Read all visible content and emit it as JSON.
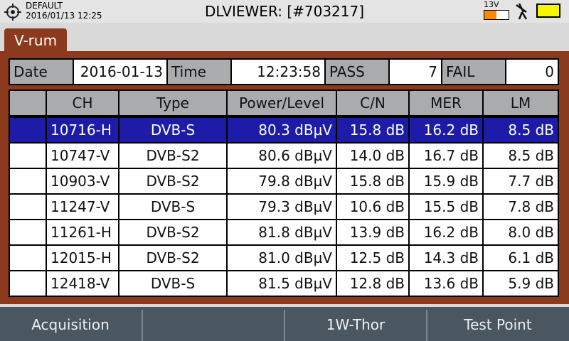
{
  "status_bar": {
    "profile": "DEFAULT",
    "datetime": "2016/01/13 12:25",
    "title": "DLVIEWER: [#703217]",
    "voltage": "13V"
  },
  "tab": {
    "title": "V-rum"
  },
  "summary": {
    "date_label": "Date",
    "date": "2016-01-13",
    "time_label": "Time",
    "time": "12:23:58",
    "pass_label": "PASS",
    "pass": 7,
    "fail_label": "FAIL",
    "fail": 0
  },
  "table": {
    "columns": [
      "CH",
      "Type",
      "Power/Level",
      "C/N",
      "MER",
      "LM"
    ],
    "selected_row": 0,
    "rows": [
      [
        "10716-H",
        "DVB-S",
        "80.3 dBµV",
        "15.8 dB",
        "16.2 dB",
        "8.5 dB"
      ],
      [
        "10747-V",
        "DVB-S2",
        "80.6 dBµV",
        "14.0 dB",
        "16.7 dB",
        "8.5 dB"
      ],
      [
        "10903-V",
        "DVB-S2",
        "79.8 dBµV",
        "15.8 dB",
        "15.9 dB",
        "7.7 dB"
      ],
      [
        "11247-V",
        "DVB-S",
        "79.3 dBµV",
        "10.6 dB",
        "15.5 dB",
        "7.8 dB"
      ],
      [
        "11261-H",
        "DVB-S2",
        "81.8 dBµV",
        "13.9 dB",
        "16.2 dB",
        "8.0 dB"
      ],
      [
        "12015-H",
        "DVB-S2",
        "81.0 dBµV",
        "12.5 dB",
        "14.3 dB",
        "6.1 dB"
      ],
      [
        "12418-V",
        "DVB-S",
        "81.5 dBµV",
        "12.8 dB",
        "13.6 dB",
        "5.9 dB"
      ]
    ]
  },
  "softkeys": {
    "key1": "Acquisition",
    "key3": "1W-Thor",
    "key4": "Test Point"
  }
}
